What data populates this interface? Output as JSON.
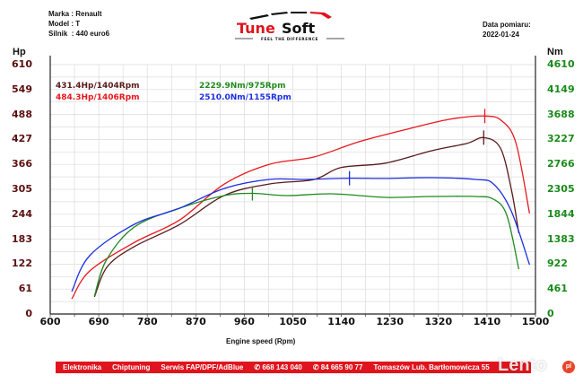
{
  "header": {
    "make_label": "Marka : Renault",
    "model_label": "Model : T",
    "engine_label": "Silnik  : 440 euro6",
    "date_title": "Data pomiaru:",
    "date_value": "2022-01-24",
    "logo_text_1": "Tune",
    "logo_text_2": "Soft",
    "logo_tagline": "FEEL THE DIFFERENCE"
  },
  "legend": {
    "power_before": "431.4Hp/1404Rpm",
    "power_after": "484.3Hp/1406Rpm",
    "torque_before": "2229.9Nm/975Rpm",
    "torque_after": "2510.0Nm/1155Rpm"
  },
  "footer": {
    "items": [
      "Elektronika",
      "Chiptuning",
      "Serwis FAP/DPF/AdBlue",
      "✆ 668 143 040",
      "✆ 84 665 90 77",
      "Tomaszów Lub. Bartłomowicza 55"
    ]
  },
  "watermark": {
    "text": "Lento",
    "badge": "pl"
  },
  "colors": {
    "power_before": "#5a1a1a",
    "power_after": "#e8161b",
    "torque_before": "#1f8a1f",
    "torque_after": "#1d2ee0",
    "left_axis": "#5a0f0f",
    "right_axis": "#1a8a1a",
    "footer_bg": "#e0141c"
  },
  "chart_data": {
    "type": "line",
    "title": "",
    "xlabel": "Engine speed (Rpm)",
    "ylabel": "Hp",
    "y2label": "Nm",
    "xlim": [
      600,
      1500
    ],
    "ylim": [
      0,
      610
    ],
    "y2lim": [
      0,
      4610
    ],
    "x_ticks": [
      600,
      690,
      780,
      870,
      960,
      1050,
      1140,
      1230,
      1320,
      1410,
      1500
    ],
    "y_ticks": [
      0,
      61,
      122,
      183,
      244,
      305,
      366,
      427,
      488,
      549,
      610
    ],
    "y2_ticks": [
      0,
      461,
      922,
      1383,
      1844,
      2305,
      2766,
      3227,
      3688,
      4149,
      4610
    ],
    "grid": true,
    "legend_position": "top-left inside plot",
    "series": [
      {
        "name": "431.4Hp/1404Rpm",
        "axis": "left",
        "color": "#5a1a1a",
        "x": [
          682,
          706,
          756,
          840,
          923,
          1006,
          1089,
          1139,
          1222,
          1306,
          1372,
          1404,
          1435,
          1455,
          1469
        ],
        "y": [
          42,
          116,
          165,
          219,
          290,
          318,
          329,
          358,
          369,
          399,
          417,
          431.4,
          406,
          307,
          198
        ]
      },
      {
        "name": "484.3Hp/1406Rpm",
        "axis": "left",
        "color": "#e8161b",
        "x": [
          640,
          673,
          756,
          840,
          923,
          1006,
          1089,
          1172,
          1256,
          1339,
          1406,
          1438,
          1464,
          1489
        ],
        "y": [
          37,
          105,
          175,
          230,
          318,
          366,
          384,
          421,
          450,
          476,
          484.3,
          472,
          417,
          246
        ]
      },
      {
        "name": "2229.9Nm/975Rpm",
        "axis": "right",
        "color": "#1f8a1f",
        "x": [
          682,
          704,
          756,
          840,
          923,
          975,
          1039,
          1122,
          1222,
          1306,
          1389,
          1422,
          1447,
          1469
        ],
        "y": [
          332,
          995,
          1609,
          1957,
          2189,
          2229.9,
          2189,
          2222,
          2156,
          2172,
          2172,
          2123,
          1824,
          829
        ]
      },
      {
        "name": "2510.0Nm/1155Rpm",
        "axis": "right",
        "color": "#1d2ee0",
        "x": [
          640,
          673,
          756,
          840,
          923,
          1006,
          1072,
          1155,
          1222,
          1306,
          1389,
          1422,
          1455,
          1489
        ],
        "y": [
          415,
          1078,
          1658,
          1957,
          2322,
          2488,
          2488,
          2510,
          2505,
          2521,
          2488,
          2405,
          1907,
          912
        ]
      }
    ],
    "peak_markers": [
      {
        "series": 0,
        "x": 1404,
        "y": 431.4
      },
      {
        "series": 1,
        "x": 1406,
        "y": 484.3
      },
      {
        "series": 2,
        "x": 975,
        "y": 2229.9
      },
      {
        "series": 3,
        "x": 1155,
        "y": 2510.0
      }
    ]
  }
}
